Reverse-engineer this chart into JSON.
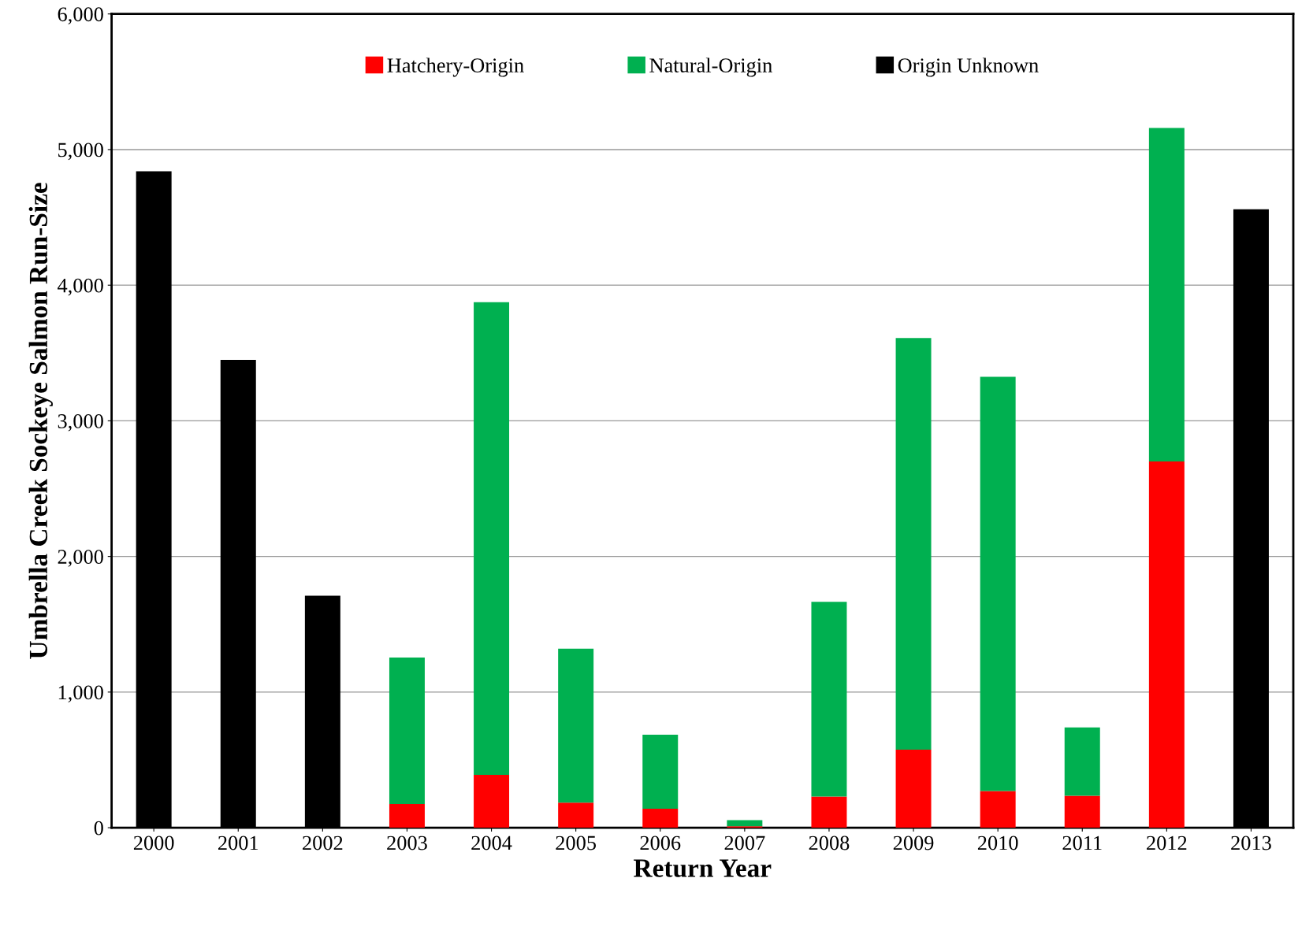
{
  "chart_data": {
    "type": "bar",
    "stacked": true,
    "xlabel": "Return Year",
    "ylabel": "Umbrella Creek Sockeye Salmon Run-Size",
    "categories": [
      "2000",
      "2001",
      "2002",
      "2003",
      "2004",
      "2005",
      "2006",
      "2007",
      "2008",
      "2009",
      "2010",
      "2011",
      "2012",
      "2013"
    ],
    "series": [
      {
        "name": "Hatchery-Origin",
        "color": "#ff0000",
        "values": [
          null,
          null,
          null,
          175,
          390,
          185,
          140,
          10,
          230,
          575,
          270,
          235,
          2700,
          null
        ]
      },
      {
        "name": "Natural-Origin",
        "color": "#00b050",
        "values": [
          null,
          null,
          null,
          1080,
          3485,
          1135,
          545,
          45,
          1435,
          3035,
          3055,
          505,
          2460,
          null
        ]
      },
      {
        "name": "Origin Unknown",
        "color": "#000000",
        "values": [
          4840,
          3450,
          1710,
          null,
          null,
          null,
          null,
          null,
          null,
          null,
          null,
          null,
          null,
          4560
        ]
      }
    ],
    "ylim": [
      0,
      6000
    ],
    "yticks": [
      {
        "value": 0,
        "label": "0"
      },
      {
        "value": 1000,
        "label": "1,000"
      },
      {
        "value": 2000,
        "label": "2,000"
      },
      {
        "value": 3000,
        "label": "3,000"
      },
      {
        "value": 4000,
        "label": "4,000"
      },
      {
        "value": 5000,
        "label": "5,000"
      },
      {
        "value": 6000,
        "label": "6,000"
      }
    ],
    "grid": "y",
    "legend": "top"
  }
}
